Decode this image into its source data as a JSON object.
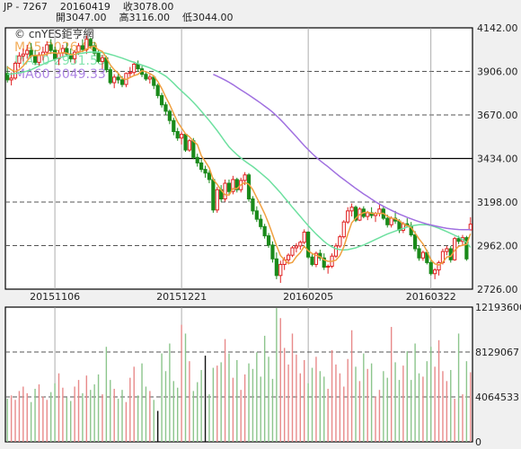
{
  "header": {
    "symbol": "JP - 7267",
    "date": "20160419",
    "close_label": "收3078.00",
    "open_label": "開3047.00",
    "high_label": "高3116.00",
    "low_label": "低3044.00"
  },
  "chart_data": [
    {
      "type": "candlestick",
      "watermark": "© cnYES鉅亨網",
      "legend": [
        {
          "label": "MA5 3026.00",
          "color": "#f0a040"
        },
        {
          "label": "MA20 2951.55",
          "color": "#6ee0a0"
        },
        {
          "label": "MA60 3049.33",
          "color": "#a070e0"
        }
      ],
      "ylim": [
        2726,
        4142
      ],
      "y_ticks": [
        "4142.00",
        "3906.00",
        "3670.00",
        "3434.00",
        "3198.00",
        "2962.00",
        "2726.00"
      ],
      "x_ticks": [
        {
          "label": "20151106",
          "index": 12
        },
        {
          "label": "20151221",
          "index": 44
        },
        {
          "label": "20160205",
          "index": 76
        },
        {
          "label": "20160322",
          "index": 107
        }
      ],
      "ohlc": [
        [
          3895,
          3935,
          3845,
          3860
        ],
        [
          3860,
          3900,
          3830,
          3870
        ],
        [
          3870,
          3960,
          3860,
          3950
        ],
        [
          3950,
          4010,
          3925,
          3990
        ],
        [
          3990,
          4030,
          3960,
          4000
        ],
        [
          4000,
          4050,
          3975,
          4020
        ],
        [
          4020,
          4060,
          3980,
          3990
        ],
        [
          3990,
          4020,
          3940,
          3955
        ],
        [
          3955,
          4010,
          3935,
          3995
        ],
        [
          3995,
          4040,
          3965,
          4010
        ],
        [
          4010,
          4070,
          3990,
          4050
        ],
        [
          4050,
          4080,
          4000,
          4020
        ],
        [
          4020,
          4040,
          3960,
          3975
        ],
        [
          3975,
          4020,
          3940,
          4005
        ],
        [
          4005,
          4050,
          3985,
          4030
        ],
        [
          4030,
          4060,
          3990,
          4000
        ],
        [
          4000,
          4030,
          3955,
          3975
        ],
        [
          3975,
          4020,
          3950,
          4010
        ],
        [
          4010,
          4060,
          3995,
          4045
        ],
        [
          4045,
          4080,
          4010,
          4025
        ],
        [
          4025,
          4100,
          4000,
          4080
        ],
        [
          4080,
          4090,
          4030,
          4045
        ],
        [
          4045,
          4065,
          3990,
          4005
        ],
        [
          4005,
          4020,
          3950,
          3960
        ],
        [
          3960,
          3995,
          3920,
          3980
        ],
        [
          3980,
          3990,
          3900,
          3915
        ],
        [
          3915,
          3930,
          3835,
          3845
        ],
        [
          3845,
          3890,
          3815,
          3875
        ],
        [
          3875,
          3900,
          3840,
          3860
        ],
        [
          3860,
          3880,
          3820,
          3835
        ],
        [
          3835,
          3900,
          3820,
          3895
        ],
        [
          3895,
          3930,
          3870,
          3900
        ],
        [
          3900,
          3960,
          3885,
          3945
        ],
        [
          3945,
          3965,
          3905,
          3920
        ],
        [
          3920,
          3935,
          3875,
          3890
        ],
        [
          3890,
          3905,
          3855,
          3865
        ],
        [
          3865,
          3890,
          3840,
          3875
        ],
        [
          3875,
          3885,
          3810,
          3830
        ],
        [
          3830,
          3840,
          3760,
          3775
        ],
        [
          3775,
          3790,
          3710,
          3725
        ],
        [
          3725,
          3740,
          3670,
          3690
        ],
        [
          3690,
          3700,
          3620,
          3640
        ],
        [
          3640,
          3655,
          3560,
          3580
        ],
        [
          3580,
          3600,
          3530,
          3545
        ],
        [
          3545,
          3580,
          3510,
          3565
        ],
        [
          3565,
          3570,
          3470,
          3480
        ],
        [
          3480,
          3540,
          3470,
          3530
        ],
        [
          3530,
          3545,
          3430,
          3440
        ],
        [
          3440,
          3460,
          3390,
          3410
        ],
        [
          3410,
          3430,
          3360,
          3375
        ],
        [
          3375,
          3395,
          3330,
          3355
        ],
        [
          3355,
          3370,
          3300,
          3320
        ],
        [
          3320,
          3330,
          3140,
          3155
        ],
        [
          3155,
          3280,
          3140,
          3265
        ],
        [
          3265,
          3290,
          3200,
          3215
        ],
        [
          3215,
          3320,
          3200,
          3300
        ],
        [
          3300,
          3320,
          3240,
          3255
        ],
        [
          3255,
          3340,
          3240,
          3320
        ],
        [
          3320,
          3330,
          3250,
          3265
        ],
        [
          3265,
          3330,
          3250,
          3315
        ],
        [
          3315,
          3360,
          3290,
          3345
        ],
        [
          3345,
          3355,
          3200,
          3215
        ],
        [
          3215,
          3230,
          3130,
          3150
        ],
        [
          3150,
          3175,
          3090,
          3105
        ],
        [
          3105,
          3130,
          3050,
          3065
        ],
        [
          3065,
          3080,
          3000,
          3015
        ],
        [
          3015,
          3030,
          2950,
          2965
        ],
        [
          2965,
          2985,
          2870,
          2890
        ],
        [
          2890,
          2925,
          2780,
          2800
        ],
        [
          2800,
          2880,
          2760,
          2860
        ],
        [
          2860,
          2900,
          2830,
          2885
        ],
        [
          2885,
          2920,
          2860,
          2910
        ],
        [
          2910,
          2960,
          2900,
          2950
        ],
        [
          2950,
          2975,
          2925,
          2960
        ],
        [
          2960,
          2990,
          2940,
          2980
        ],
        [
          2980,
          3050,
          2970,
          3035
        ],
        [
          3035,
          3040,
          2890,
          2900
        ],
        [
          2900,
          2915,
          2850,
          2860
        ],
        [
          2860,
          2930,
          2845,
          2920
        ],
        [
          2920,
          2940,
          2880,
          2895
        ],
        [
          2895,
          2920,
          2830,
          2845
        ],
        [
          2845,
          2860,
          2810,
          2850
        ],
        [
          2850,
          2920,
          2840,
          2905
        ],
        [
          2905,
          2975,
          2895,
          2960
        ],
        [
          2960,
          3020,
          2950,
          3010
        ],
        [
          3010,
          3100,
          3000,
          3090
        ],
        [
          3090,
          3170,
          3080,
          3150
        ],
        [
          3150,
          3190,
          3120,
          3170
        ],
        [
          3170,
          3180,
          3090,
          3100
        ],
        [
          3100,
          3170,
          3095,
          3160
        ],
        [
          3160,
          3175,
          3110,
          3120
        ],
        [
          3120,
          3150,
          3100,
          3140
        ],
        [
          3140,
          3170,
          3110,
          3125
        ],
        [
          3125,
          3145,
          3090,
          3135
        ],
        [
          3135,
          3190,
          3120,
          3160
        ],
        [
          3160,
          3175,
          3100,
          3110
        ],
        [
          3110,
          3130,
          3060,
          3075
        ],
        [
          3075,
          3120,
          3060,
          3110
        ],
        [
          3110,
          3150,
          3080,
          3095
        ],
        [
          3095,
          3105,
          3030,
          3045
        ],
        [
          3045,
          3090,
          3030,
          3080
        ],
        [
          3080,
          3110,
          3060,
          3070
        ],
        [
          3070,
          3090,
          3010,
          3020
        ],
        [
          3020,
          3040,
          2930,
          2945
        ],
        [
          2945,
          2965,
          2880,
          2895
        ],
        [
          2895,
          2935,
          2880,
          2925
        ],
        [
          2925,
          2940,
          2860,
          2870
        ],
        [
          2870,
          2890,
          2800,
          2810
        ],
        [
          2810,
          2840,
          2780,
          2830
        ],
        [
          2830,
          2880,
          2800,
          2870
        ],
        [
          2870,
          2945,
          2860,
          2930
        ],
        [
          2930,
          2960,
          2910,
          2945
        ],
        [
          2945,
          2960,
          2870,
          2885
        ],
        [
          2885,
          3010,
          2880,
          3000
        ],
        [
          3000,
          3015,
          2970,
          2985
        ],
        [
          2985,
          3020,
          2960,
          3005
        ],
        [
          3005,
          3015,
          2880,
          2890
        ],
        [
          3047,
          3116,
          3044,
          3078
        ]
      ],
      "ma5": [
        3930,
        3915,
        3905,
        3915,
        3935,
        3962,
        3990,
        3993,
        3992,
        3994,
        4001,
        4006,
        4006,
        4003,
        4008,
        4005,
        3997,
        3997,
        4012,
        4015,
        4027,
        4038,
        4043,
        4023,
        4014,
        3981,
        3941,
        3915,
        3896,
        3867,
        3862,
        3873,
        3883,
        3890,
        3910,
        3904,
        3895,
        3880,
        3851,
        3813,
        3767,
        3726,
        3678,
        3632,
        3600,
        3568,
        3552,
        3528,
        3510,
        3449,
        3418,
        3384,
        3320,
        3294,
        3262,
        3238,
        3236,
        3271,
        3271,
        3291,
        3304,
        3295,
        3265,
        3222,
        3180,
        3135,
        3081,
        3022,
        2961,
        2908,
        2884,
        2865,
        2871,
        2902,
        2924,
        2958,
        2934,
        2919,
        2909,
        2902,
        2885,
        2877,
        2877,
        2883,
        2908,
        2955,
        3025,
        3086,
        3110,
        3130,
        3140,
        3143,
        3137,
        3136,
        3136,
        3137,
        3121,
        3111,
        3107,
        3097,
        3079,
        3071,
        3060,
        3030,
        2998,
        2971,
        2932,
        2885,
        2863,
        2857,
        2871,
        2900,
        2904,
        2936,
        2958,
        2964,
        2969,
        3026
      ],
      "ma20": [
        3890,
        3892,
        3895,
        3898,
        3902,
        3908,
        3915,
        3925,
        3935,
        3945,
        3955,
        3963,
        3970,
        3978,
        3985,
        3990,
        3995,
        3998,
        4002,
        4005,
        4008,
        4010,
        4011,
        4010,
        4008,
        4004,
        3998,
        3992,
        3985,
        3978,
        3970,
        3962,
        3955,
        3948,
        3940,
        3933,
        3925,
        3915,
        3905,
        3893,
        3880,
        3862,
        3842,
        3820,
        3800,
        3780,
        3760,
        3738,
        3715,
        3690,
        3665,
        3640,
        3612,
        3585,
        3555,
        3525,
        3497,
        3475,
        3455,
        3437,
        3420,
        3405,
        3390,
        3373,
        3355,
        3337,
        3318,
        3295,
        3272,
        3248,
        3222,
        3196,
        3170,
        3145,
        3120,
        3095,
        3070,
        3047,
        3025,
        3005,
        2985,
        2968,
        2955,
        2945,
        2940,
        2938,
        2940,
        2945,
        2950,
        2958,
        2965,
        2975,
        2985,
        2995,
        3005,
        3015,
        3025,
        3033,
        3041,
        3048,
        3055,
        3062,
        3068,
        3072,
        3075,
        3076,
        3075,
        3070,
        3064,
        3056,
        3047,
        3038,
        3028,
        3018,
        3008,
        2995,
        2980,
        2952
      ],
      "ma60": [
        null,
        null,
        null,
        null,
        null,
        null,
        null,
        null,
        null,
        null,
        null,
        null,
        null,
        null,
        null,
        null,
        null,
        null,
        null,
        null,
        null,
        null,
        null,
        null,
        null,
        null,
        null,
        null,
        null,
        null,
        null,
        null,
        null,
        null,
        null,
        null,
        null,
        null,
        null,
        null,
        null,
        null,
        null,
        null,
        null,
        null,
        null,
        null,
        null,
        null,
        null,
        null,
        3890,
        3880,
        3870,
        3859,
        3847,
        3834,
        3820,
        3806,
        3792,
        3778,
        3764,
        3749,
        3734,
        3718,
        3702,
        3685,
        3665,
        3644,
        3622,
        3598,
        3575,
        3552,
        3528,
        3504,
        3482,
        3461,
        3441,
        3423,
        3406,
        3389,
        3371,
        3353,
        3336,
        3320,
        3304,
        3288,
        3272,
        3257,
        3242,
        3228,
        3214,
        3200,
        3187,
        3175,
        3164,
        3153,
        3143,
        3133,
        3124,
        3115,
        3107,
        3099,
        3092,
        3085,
        3079,
        3074,
        3069,
        3064,
        3060,
        3056,
        3053,
        3051,
        3049,
        3048,
        3048,
        3049
      ]
    },
    {
      "type": "bar",
      "ylim": [
        0,
        12193600
      ],
      "y_ticks": [
        "12193600",
        "8129067",
        "4064533",
        "0"
      ],
      "volume": [
        3900000,
        4200000,
        3800000,
        4600000,
        5000000,
        4400000,
        3600000,
        4800000,
        5200000,
        4100000,
        3800000,
        4500000,
        5300000,
        6200000,
        4900000,
        4000000,
        3700000,
        5000000,
        5600000,
        4400000,
        6000000,
        4700000,
        5200000,
        6100000,
        4300000,
        8600000,
        5600000,
        4800000,
        3900000,
        4700000,
        3600000,
        5800000,
        6800000,
        4200000,
        7100000,
        5000000,
        4600000,
        3800000,
        2800000,
        8000000,
        6400000,
        8900000,
        5500000,
        4900000,
        10600000,
        9800000,
        7300000,
        4600000,
        5400000,
        6500000,
        7800000,
        4300000,
        6700000,
        6900000,
        7200000,
        9300000,
        8000000,
        5800000,
        7400000,
        4700000,
        6100000,
        7100000,
        6600000,
        8100000,
        5900000,
        9600000,
        7700000,
        5700000,
        12100000,
        11200000,
        8500000,
        7000000,
        9800000,
        7900000,
        6200000,
        7400000,
        5300000,
        6700000,
        7700000,
        6400000,
        5900000,
        4800000,
        8300000,
        7000000,
        6200000,
        5000000,
        7500000,
        10100000,
        6800000,
        5500000,
        8000000,
        6600000,
        7100000,
        4100000,
        4700000,
        6400000,
        5800000,
        10400000,
        7200000,
        5600000,
        6900000,
        8200000,
        5600000,
        8900000,
        6200000,
        5900000,
        7300000,
        8600000,
        6800000,
        9200000,
        6400000,
        5500000,
        6500000,
        3900000,
        9800000,
        4300000,
        7300000,
        6300000
      ]
    }
  ]
}
